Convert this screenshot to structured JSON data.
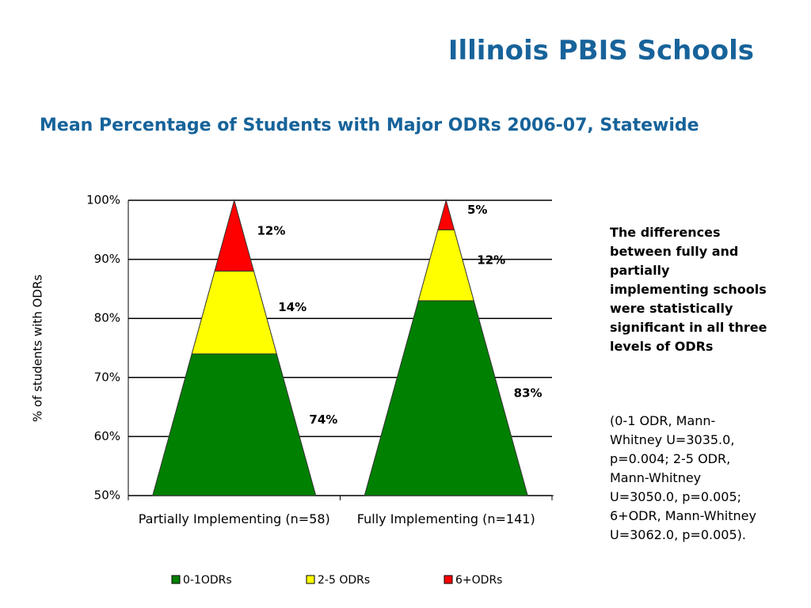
{
  "chart_data": {
    "type": "pyramid",
    "title": "Illinois PBIS Schools",
    "subtitle": "Mean Percentage of Students with Major ODRs 2006-07, Statewide",
    "y_label": "% of students with ODRs",
    "categories": [
      "Partially Implementing (n=58)",
      "Fully Implementing (n=141)"
    ],
    "series": [
      {
        "name": "0-1ODRs",
        "color": "#008000",
        "values": [
          74,
          83
        ],
        "value_labels": [
          "74%",
          "83%"
        ]
      },
      {
        "name": "2-5 ODRs",
        "color": "#ffff00",
        "values": [
          14,
          12
        ],
        "value_labels": [
          "14%",
          "12%"
        ]
      },
      {
        "name": "6+ODRs",
        "color": "#ff0000",
        "values": [
          12,
          5
        ],
        "value_labels": [
          "12%",
          "5%"
        ]
      }
    ],
    "ylim": [
      50,
      100
    ],
    "yticks": [
      {
        "value": 50,
        "label": "50%"
      },
      {
        "value": 60,
        "label": "60%"
      },
      {
        "value": 70,
        "label": "70%"
      },
      {
        "value": 80,
        "label": "80%"
      },
      {
        "value": 90,
        "label": "90%"
      },
      {
        "value": 100,
        "label": "100%"
      }
    ],
    "grid": true,
    "note": "The differences between fully and partially implementing schools were statistically significant in all three levels of ODRs",
    "stats": "(0-1 ODR, Mann-Whitney U=3035.0, p=0.004; 2-5 ODR, Mann-Whitney U=3050.0, p=0.005; 6+ODR, Mann-Whitney U=3062.0, p=0.005)."
  }
}
